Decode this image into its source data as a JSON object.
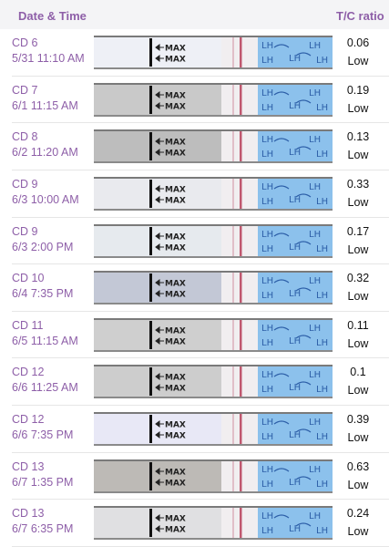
{
  "header": {
    "date_time": "Date & Time",
    "ratio": "T/C ratio"
  },
  "strip_text": {
    "max": "MAX",
    "lh": "LH"
  },
  "rows": [
    {
      "cd": "CD 6",
      "datetime": "5/31 11:10 AM",
      "ratio": "0.06",
      "level": "Low"
    },
    {
      "cd": "CD 7",
      "datetime": "6/1 11:15 AM",
      "ratio": "0.19",
      "level": "Low"
    },
    {
      "cd": "CD 8",
      "datetime": "6/2 11:20 AM",
      "ratio": "0.13",
      "level": "Low"
    },
    {
      "cd": "CD 9",
      "datetime": "6/3 10:00 AM",
      "ratio": "0.33",
      "level": "Low"
    },
    {
      "cd": "CD 9",
      "datetime": "6/3 2:00 PM",
      "ratio": "0.17",
      "level": "Low"
    },
    {
      "cd": "CD 10",
      "datetime": "6/4 7:35 PM",
      "ratio": "0.32",
      "level": "Low"
    },
    {
      "cd": "CD 11",
      "datetime": "6/5 11:15 AM",
      "ratio": "0.11",
      "level": "Low"
    },
    {
      "cd": "CD 12",
      "datetime": "6/6 11:25 AM",
      "ratio": "0.1",
      "level": "Low"
    },
    {
      "cd": "CD 12",
      "datetime": "6/6 7:35 PM",
      "ratio": "0.39",
      "level": "Low"
    },
    {
      "cd": "CD 13",
      "datetime": "6/7 1:35 PM",
      "ratio": "0.63",
      "level": "Low"
    },
    {
      "cd": "CD 13",
      "datetime": "6/7 6:35 PM",
      "ratio": "0.24",
      "level": "Low"
    }
  ]
}
